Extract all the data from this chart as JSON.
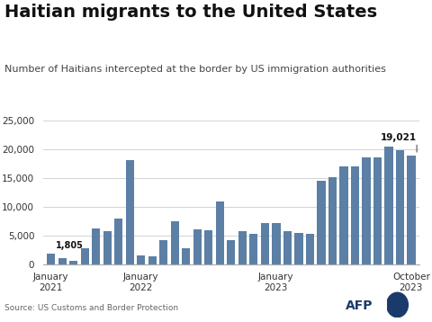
{
  "title": "Haitian migrants to the United States",
  "subtitle": "Number of Haitians intercepted at the border by US immigration authorities",
  "source": "Source: US Customs and Border Protection",
  "bar_color": "#5c7fa5",
  "background_color": "#ffffff",
  "annotation_first": "1,805",
  "annotation_last": "19,021",
  "yticks": [
    0,
    5000,
    10000,
    15000,
    20000,
    25000
  ],
  "ytick_labels": [
    "0",
    "5,000",
    "10,000",
    "15,000",
    "20,000",
    "25,000"
  ],
  "ylim": [
    0,
    27000
  ],
  "xtick_labels": [
    "January\n2021",
    "January\n2022",
    "January\n2023",
    "October\n2023"
  ],
  "xtick_positions": [
    0,
    8,
    20,
    32
  ],
  "values": [
    1805,
    1100,
    500,
    2800,
    6200,
    5700,
    8000,
    18200,
    1500,
    1400,
    4100,
    7500,
    2800,
    6000,
    5900,
    11000,
    4200,
    5700,
    5300,
    7100,
    7200,
    5800,
    5500,
    5300,
    14500,
    15200,
    17000,
    17000,
    18600,
    18700,
    20500,
    19900,
    19021
  ],
  "title_fontsize": 14,
  "subtitle_fontsize": 8,
  "source_fontsize": 6.5,
  "tick_fontsize": 7.5
}
